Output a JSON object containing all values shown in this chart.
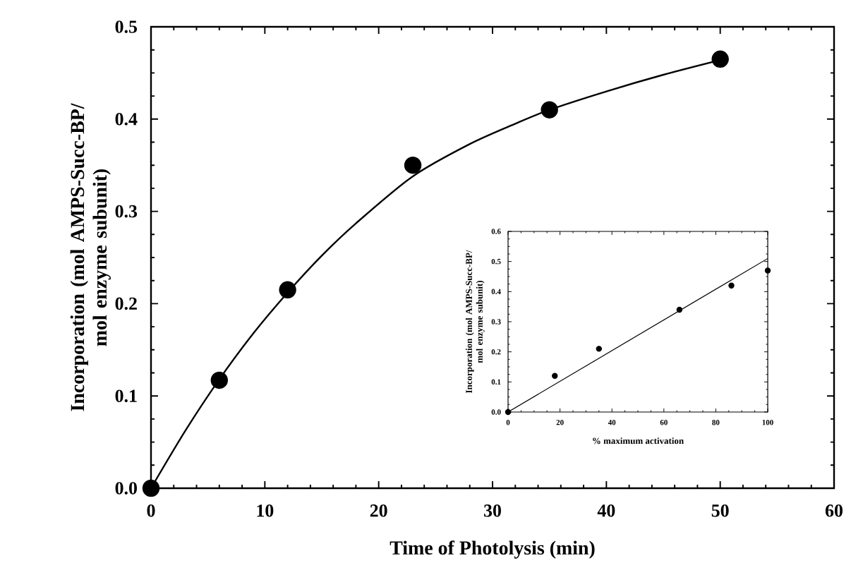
{
  "chart_data": [
    {
      "type": "scatter",
      "xlabel": "Time of Photolysis (min)",
      "ylabel": "Incorporation (mol AMPS-Succ-BP/ mol enzyme subunit)",
      "xlim": [
        0,
        60
      ],
      "ylim": [
        0,
        0.5
      ],
      "xticks": [
        0,
        10,
        20,
        30,
        40,
        50,
        60
      ],
      "yticks": [
        {
          "value": 0,
          "label": "0.0"
        },
        0.1,
        0.2,
        0.3,
        0.4,
        0.5
      ],
      "series": [
        {
          "x": [
            0,
            6,
            12,
            23,
            35,
            50
          ],
          "values": [
            0,
            0.117,
            0.215,
            0.35,
            0.41,
            0.465
          ],
          "color": "#000000",
          "marker": "circle"
        },
        {
          "type": "line",
          "x": [
            0,
            3,
            6,
            9,
            12,
            15,
            18,
            23,
            28,
            32,
            35,
            40,
            45,
            50
          ],
          "values": [
            0,
            0.062,
            0.118,
            0.168,
            0.212,
            0.252,
            0.287,
            0.338,
            0.373,
            0.395,
            0.41,
            0.43,
            0.448,
            0.464
          ],
          "color": "#000000",
          "marker": "none"
        }
      ]
    },
    {
      "type": "scatter",
      "xlabel": "% maximum activation",
      "ylabel": "Incorporation (mol AMPS-Succ-BP/ mol enzyme subunit)",
      "xlim": [
        0,
        100
      ],
      "ylim": [
        0,
        0.6
      ],
      "xticks": [
        0,
        20,
        40,
        60,
        80,
        100
      ],
      "yticks": [
        {
          "value": 0,
          "label": "0.0"
        },
        0.1,
        0.2,
        0.3,
        0.4,
        0.5,
        0.6
      ],
      "series": [
        {
          "x": [
            0,
            18,
            35,
            66,
            86,
            100
          ],
          "values": [
            0,
            0.12,
            0.21,
            0.34,
            0.42,
            0.47
          ],
          "color": "#000000",
          "marker": "circle"
        },
        {
          "type": "line",
          "x": [
            0,
            100
          ],
          "values": [
            0,
            0.51
          ],
          "color": "#000000",
          "marker": "none"
        }
      ]
    }
  ]
}
